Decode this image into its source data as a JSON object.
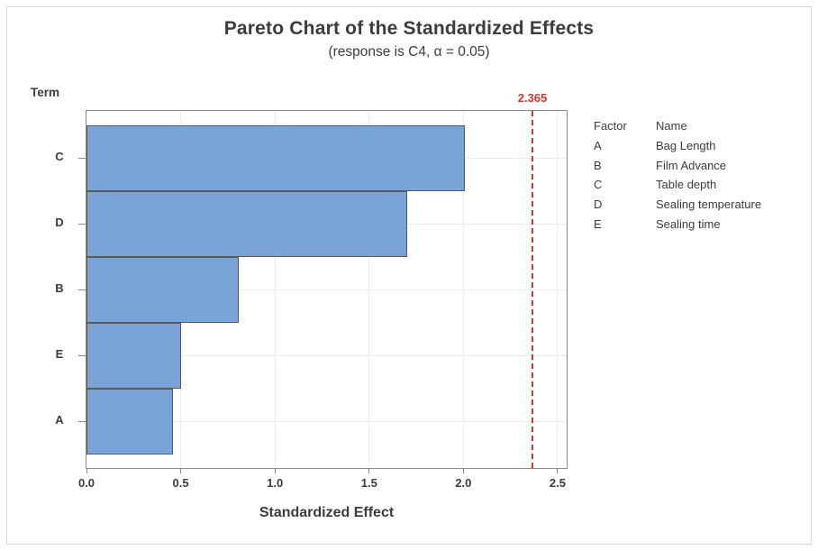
{
  "header": {
    "title": "Pareto Chart of the Standardized Effects",
    "subtitle": "(response is C4, α = 0.05)"
  },
  "axes": {
    "y_axis_title": "Term",
    "x_axis_title": "Standardized Effect"
  },
  "chart_data": {
    "type": "bar",
    "orientation": "horizontal",
    "title": "Pareto Chart of the Standardized Effects",
    "subtitle": "(response is C4, α = 0.05)",
    "xlabel": "Standardized Effect",
    "ylabel": "Term",
    "categories": [
      "C",
      "D",
      "B",
      "E",
      "A"
    ],
    "values": [
      2.01,
      1.7,
      0.81,
      0.5,
      0.46
    ],
    "xlim": [
      0,
      2.548
    ],
    "x_tick_values": [
      0,
      0.5,
      1.0,
      1.5,
      2.0,
      2.5
    ],
    "x_tick_labels": [
      "0.0",
      "0.5",
      "1.0",
      "1.5",
      "2.0",
      "2.5"
    ],
    "grid": true,
    "legend_position": "right",
    "reference_line": {
      "value": 2.365,
      "label": "2.365"
    }
  },
  "legend": {
    "factor_header": "Factor",
    "name_header": "Name",
    "rows": [
      {
        "factor": "A",
        "name": "Bag Length"
      },
      {
        "factor": "B",
        "name": "Film Advance"
      },
      {
        "factor": "C",
        "name": "Table depth"
      },
      {
        "factor": "D",
        "name": "Sealing temperature"
      },
      {
        "factor": "E",
        "name": "Sealing time"
      }
    ]
  },
  "colors": {
    "bar_fill": "#7aa3d8",
    "bar_stroke": "#595959",
    "reference": "#d9342b",
    "grid": "#ececec",
    "axis": "#8a8a8a",
    "text": "#3c3c3c",
    "frame_border": "#d5d9dd"
  }
}
